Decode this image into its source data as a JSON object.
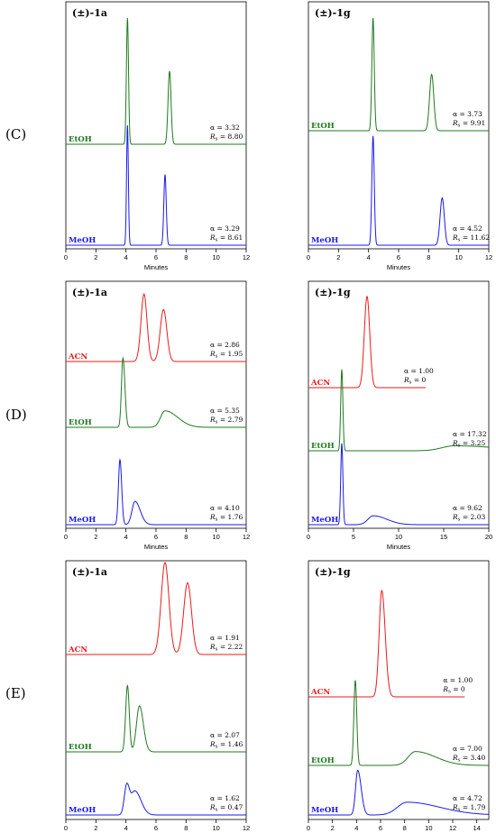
{
  "figure": {
    "rows": [
      "(C)",
      "(D)",
      "(E)"
    ]
  },
  "colors": {
    "MeOH": "#1a1aee",
    "EtOH": "#1e7a1e",
    "ACN": "#ee1a1a",
    "axis": "#000000"
  },
  "chart_data": [
    {
      "type": "line",
      "row": "(C)",
      "compound": "(±)-1a",
      "xlabel": "Minutes",
      "xlim": [
        0,
        12
      ],
      "xticks": [
        0,
        2,
        4,
        6,
        8,
        10,
        12
      ],
      "traces": [
        {
          "solvent": "EtOH",
          "alpha": "α = 3.32",
          "rs": "8.80",
          "peaks": [
            {
              "t": 4.1,
              "h": 1.0,
              "w": 0.07,
              "tail": 0
            },
            {
              "t": 6.9,
              "h": 0.58,
              "w": 0.1,
              "tail": 0
            }
          ]
        },
        {
          "solvent": "MeOH",
          "alpha": "α = 3.29",
          "rs": "8.61",
          "peaks": [
            {
              "t": 4.1,
              "h": 0.95,
              "w": 0.06,
              "tail": 0
            },
            {
              "t": 6.6,
              "h": 0.56,
              "w": 0.08,
              "tail": 0
            }
          ]
        }
      ]
    },
    {
      "type": "line",
      "row": "(C)",
      "compound": "(±)-1g",
      "xlabel": "Minutes",
      "xlim": [
        0,
        12
      ],
      "xticks": [
        0,
        2,
        4,
        6,
        8,
        10,
        12
      ],
      "traces": [
        {
          "solvent": "EtOH",
          "alpha": "α = 3.73",
          "rs": "9.91",
          "peaks": [
            {
              "t": 4.3,
              "h": 1.0,
              "w": 0.08,
              "tail": 0
            },
            {
              "t": 8.2,
              "h": 0.5,
              "w": 0.14,
              "tail": 0
            }
          ]
        },
        {
          "solvent": "MeOH",
          "alpha": "α = 4.52",
          "rs": "11.62",
          "peaks": [
            {
              "t": 4.3,
              "h": 0.97,
              "w": 0.08,
              "tail": 0
            },
            {
              "t": 8.9,
              "h": 0.42,
              "w": 0.14,
              "tail": 0
            }
          ]
        }
      ]
    },
    {
      "type": "line",
      "row": "(D)",
      "compound": "(±)-1a",
      "xlabel": "Minutes",
      "xlim": [
        0,
        12
      ],
      "xticks": [
        0,
        2,
        4,
        6,
        8,
        10,
        12
      ],
      "traces": [
        {
          "solvent": "ACN",
          "alpha": "α = 2.86",
          "rs": "1.95",
          "peaks": [
            {
              "t": 5.2,
              "h": 0.78,
              "w": 0.2,
              "tail": 0
            },
            {
              "t": 6.5,
              "h": 0.6,
              "w": 0.22,
              "tail": 0
            }
          ]
        },
        {
          "solvent": "EtOH",
          "alpha": "α = 5.35",
          "rs": "2.79",
          "peaks": [
            {
              "t": 3.8,
              "h": 0.8,
              "w": 0.1,
              "tail": 0.1
            },
            {
              "t": 6.6,
              "h": 0.19,
              "w": 0.3,
              "tail": 0.6
            }
          ]
        },
        {
          "solvent": "MeOH",
          "alpha": "α = 4.10",
          "rs": "1.76",
          "peaks": [
            {
              "t": 3.6,
              "h": 0.75,
              "w": 0.1,
              "tail": 0.05
            },
            {
              "t": 4.6,
              "h": 0.27,
              "w": 0.2,
              "tail": 0.25
            }
          ]
        }
      ]
    },
    {
      "type": "line",
      "row": "(D)",
      "compound": "(±)-1g",
      "xlabel": "Minutes",
      "xlim": [
        0,
        20
      ],
      "xticks": [
        0,
        5,
        10,
        15,
        20
      ],
      "traces": [
        {
          "solvent": "ACN",
          "alpha": "α = 1.00",
          "rs": "0",
          "xend": 13,
          "peaks": [
            {
              "t": 6.5,
              "h": 0.92,
              "w": 0.3,
              "tail": 0
            }
          ]
        },
        {
          "solvent": "EtOH",
          "alpha": "α = 17.32",
          "rs": "3.25",
          "peaks": [
            {
              "t": 3.7,
              "h": 0.82,
              "w": 0.12,
              "tail": 0
            },
            {
              "t": 16.2,
              "h": 0.05,
              "w": 1.4,
              "tail": 0.8
            }
          ]
        },
        {
          "solvent": "MeOH",
          "alpha": "α = 9.62",
          "rs": "2.03",
          "peaks": [
            {
              "t": 3.7,
              "h": 0.82,
              "w": 0.12,
              "tail": 0
            },
            {
              "t": 7.2,
              "h": 0.09,
              "w": 0.6,
              "tail": 0.5
            }
          ]
        }
      ]
    },
    {
      "type": "line",
      "row": "(E)",
      "compound": "(±)-1a",
      "xlabel": "Minutes",
      "xlim": [
        0,
        12
      ],
      "xticks": [
        0,
        2,
        4,
        6,
        8,
        10,
        12
      ],
      "traces": [
        {
          "solvent": "ACN",
          "alpha": "α = 1.91",
          "rs": "2.22",
          "peaks": [
            {
              "t": 6.6,
              "h": 1.0,
              "w": 0.26,
              "tail": 0
            },
            {
              "t": 8.1,
              "h": 0.78,
              "w": 0.26,
              "tail": 0
            }
          ]
        },
        {
          "solvent": "EtOH",
          "alpha": "α = 2.07",
          "rs": "1.46",
          "peaks": [
            {
              "t": 4.1,
              "h": 0.72,
              "w": 0.12,
              "tail": 0
            },
            {
              "t": 4.9,
              "h": 0.5,
              "w": 0.2,
              "tail": 0.1
            }
          ]
        },
        {
          "solvent": "MeOH",
          "alpha": "α = 1.62",
          "rs": "0.47",
          "peaks": [
            {
              "t": 4.05,
              "h": 0.32,
              "w": 0.16,
              "tail": 0.05
            },
            {
              "t": 4.6,
              "h": 0.26,
              "w": 0.25,
              "tail": 0.2
            }
          ]
        }
      ]
    },
    {
      "type": "line",
      "row": "(E)",
      "compound": "(±)-1g",
      "xlabel": "Minutes",
      "xlim": [
        0,
        15
      ],
      "xticks": [
        0,
        2,
        4,
        6,
        8,
        10,
        12,
        14
      ],
      "traces": [
        {
          "solvent": "ACN",
          "alpha": "α = 1.00",
          "rs": "0",
          "xend": 13,
          "peaks": [
            {
              "t": 6.1,
              "h": 1.0,
              "w": 0.22,
              "tail": 0.1
            }
          ]
        },
        {
          "solvent": "EtOH",
          "alpha": "α = 7.00",
          "rs": "3.40",
          "peaks": [
            {
              "t": 3.9,
              "h": 0.8,
              "w": 0.12,
              "tail": 0
            },
            {
              "t": 8.9,
              "h": 0.13,
              "w": 0.6,
              "tail": 0.6
            }
          ]
        },
        {
          "solvent": "MeOH",
          "alpha": "α = 4.72",
          "rs": "1.79",
          "peaks": [
            {
              "t": 4.1,
              "h": 0.42,
              "w": 0.18,
              "tail": 0.2
            },
            {
              "t": 8.2,
              "h": 0.12,
              "w": 0.8,
              "tail": 0.8
            }
          ]
        }
      ]
    }
  ]
}
